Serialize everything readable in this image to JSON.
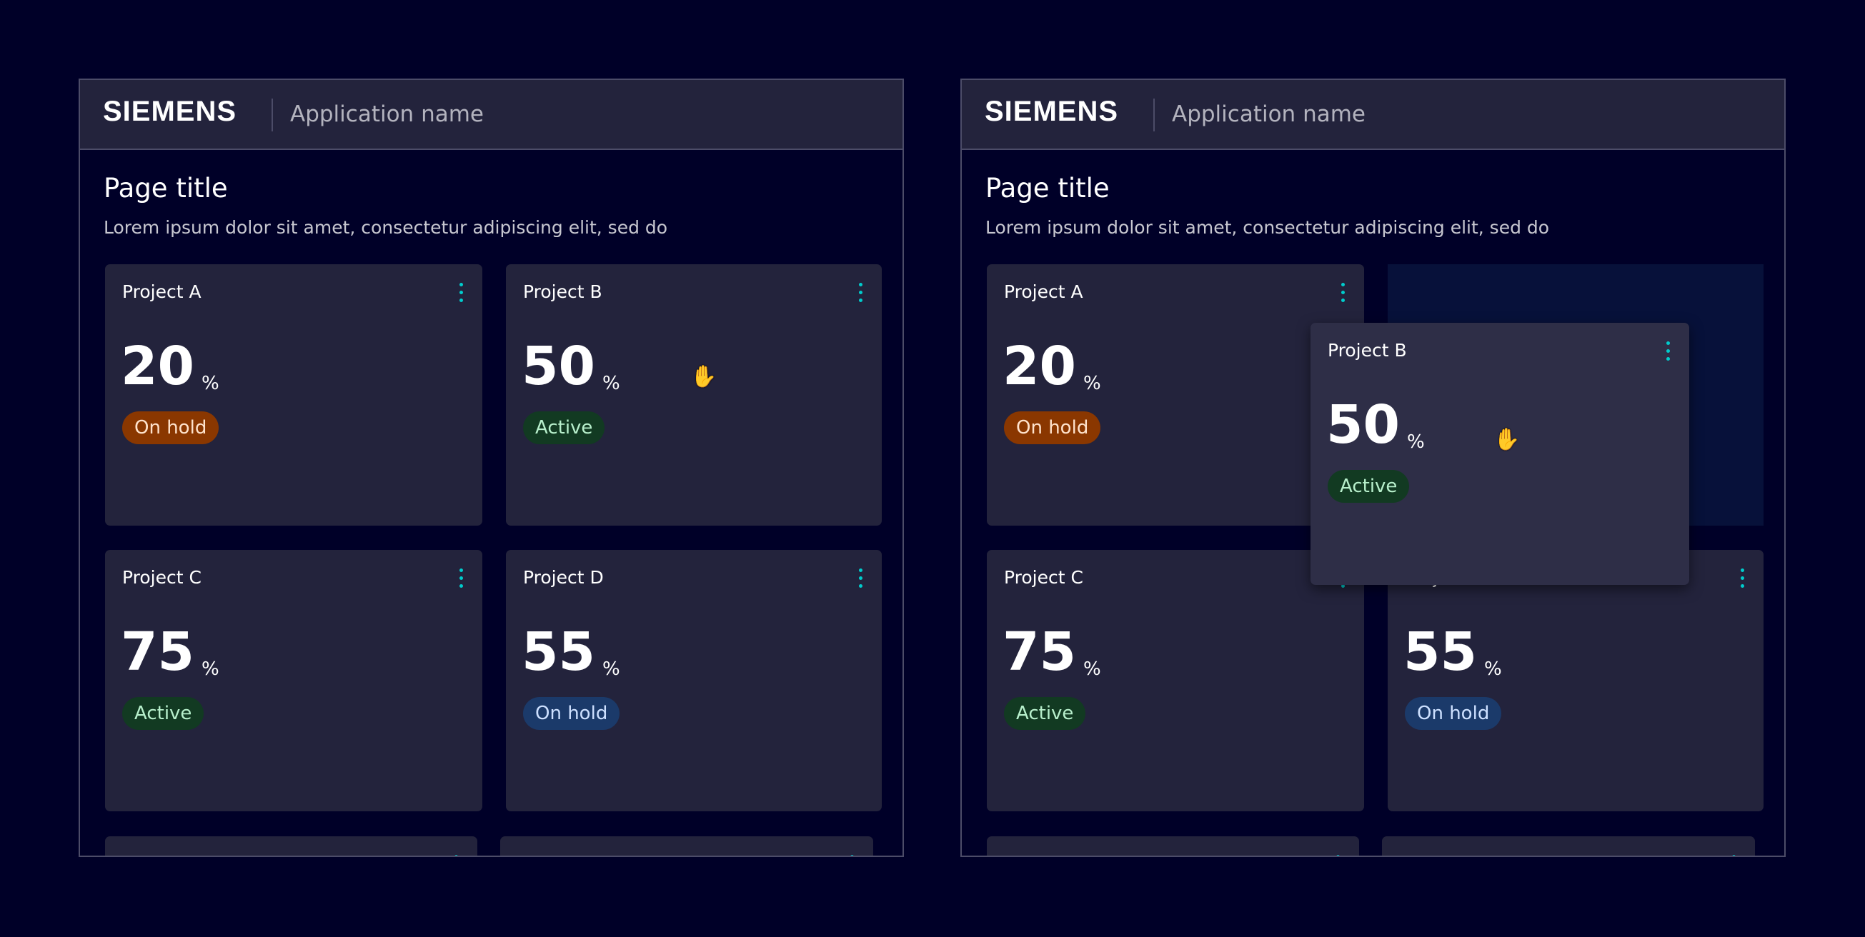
{
  "header": {
    "brand": "SIEMENS",
    "app_name": "Application name"
  },
  "page": {
    "title": "Page title",
    "subtitle": "Lorem ipsum dolor sit amet, consectetur adipiscing elit, sed do"
  },
  "status_colors": {
    "On hold orange": {
      "bg": "#8a3700",
      "fg": "#ffe3cc"
    },
    "Active": {
      "bg": "#123a22",
      "fg": "#b8f0cc"
    },
    "On hold blue": {
      "bg": "#1b3a6a",
      "fg": "#cde0ff"
    }
  },
  "cards": [
    {
      "title": "Project A",
      "value": "20",
      "unit": "%",
      "status": "On hold",
      "status_style": "On hold orange"
    },
    {
      "title": "Project B",
      "value": "50",
      "unit": "%",
      "status": "Active",
      "status_style": "Active"
    },
    {
      "title": "Project C",
      "value": "75",
      "unit": "%",
      "status": "Active",
      "status_style": "Active"
    },
    {
      "title": "Project D",
      "value": "55",
      "unit": "%",
      "status": "On hold",
      "status_style": "On hold blue"
    }
  ],
  "accent": "#00cccc",
  "cursor_icon": "grab-hand-icon"
}
